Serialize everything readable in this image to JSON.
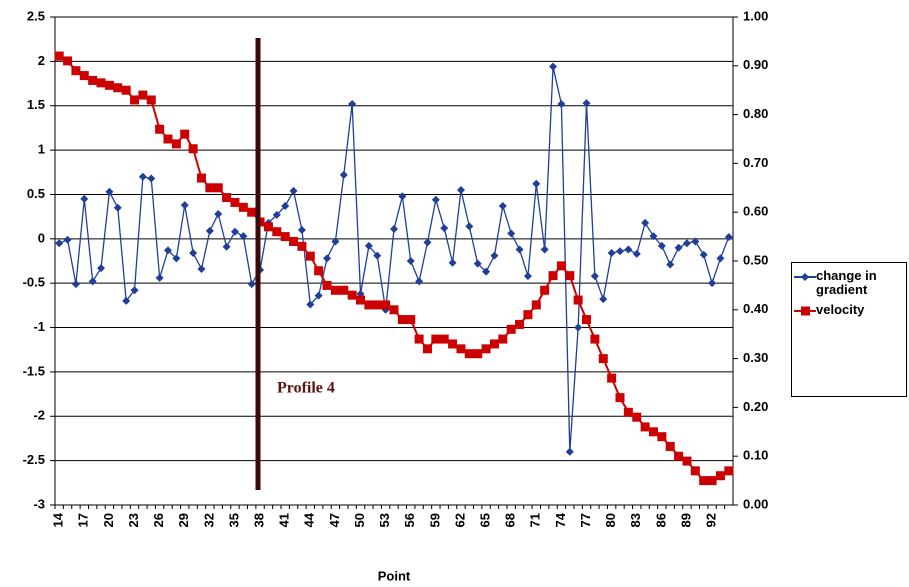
{
  "chart_data": {
    "type": "line",
    "x_label": "Point",
    "annotation": "Profile 4",
    "categories": [
      14,
      null,
      null,
      17,
      null,
      null,
      20,
      null,
      null,
      23,
      null,
      null,
      26,
      null,
      null,
      29,
      null,
      null,
      32,
      null,
      null,
      35,
      null,
      null,
      38,
      null,
      null,
      41,
      null,
      null,
      44,
      null,
      null,
      47,
      null,
      null,
      50,
      null,
      null,
      53,
      null,
      null,
      56,
      null,
      null,
      59,
      null,
      null,
      62,
      null,
      null,
      65,
      null,
      null,
      68,
      null,
      null,
      71,
      null,
      null,
      74,
      null,
      null,
      77,
      null,
      null,
      80,
      null,
      null,
      83,
      null,
      null,
      86,
      null,
      null,
      89,
      null,
      null,
      92,
      null,
      null
    ],
    "series": [
      {
        "name": "change in gradient",
        "color": "#1f3f99",
        "marker": "diamond",
        "axis": "y",
        "values": [
          -0.05,
          -0.01,
          -0.51,
          0.45,
          -0.48,
          -0.33,
          0.53,
          0.35,
          -0.7,
          -0.58,
          0.7,
          0.68,
          -0.44,
          -0.13,
          -0.22,
          0.38,
          -0.16,
          -0.34,
          0.09,
          0.28,
          -0.09,
          0.08,
          0.03,
          -0.51,
          -0.35,
          0.18,
          0.27,
          0.37,
          0.54,
          0.1,
          -0.74,
          -0.64,
          -0.22,
          -0.03,
          0.72,
          1.52,
          -0.62,
          -0.08,
          -0.19,
          -0.8,
          0.11,
          0.48,
          -0.25,
          -0.48,
          -0.04,
          0.44,
          0.12,
          -0.27,
          0.55,
          0.14,
          -0.28,
          -0.37,
          -0.19,
          0.37,
          0.06,
          -0.12,
          -0.42,
          0.62,
          -0.12,
          1.94,
          1.52,
          -2.4,
          -1.0,
          1.53,
          -0.42,
          -0.68,
          -0.16,
          -0.14,
          -0.12,
          -0.17,
          0.18,
          0.03,
          -0.08,
          -0.29,
          -0.1,
          -0.05,
          -0.03,
          -0.18,
          -0.5,
          -0.22,
          0.02
        ]
      },
      {
        "name": "velocity",
        "color": "#cc0000",
        "marker": "square",
        "axis": "y2",
        "values": [
          0.92,
          0.91,
          0.89,
          0.88,
          0.87,
          0.865,
          0.86,
          0.855,
          0.85,
          0.83,
          0.84,
          0.83,
          0.77,
          0.75,
          0.74,
          0.76,
          0.73,
          0.67,
          0.65,
          0.65,
          0.63,
          0.62,
          0.61,
          0.6,
          0.58,
          0.57,
          0.56,
          0.55,
          0.54,
          0.53,
          0.51,
          0.48,
          0.45,
          0.44,
          0.44,
          0.43,
          0.42,
          0.41,
          0.41,
          0.41,
          0.4,
          0.38,
          0.38,
          0.34,
          0.32,
          0.34,
          0.34,
          0.33,
          0.32,
          0.31,
          0.31,
          0.32,
          0.33,
          0.34,
          0.36,
          0.37,
          0.39,
          0.41,
          0.44,
          0.47,
          0.49,
          0.47,
          0.42,
          0.38,
          0.34,
          0.3,
          0.26,
          0.22,
          0.19,
          0.18,
          0.16,
          0.15,
          0.14,
          0.12,
          0.1,
          0.09,
          0.07,
          0.05,
          0.05,
          0.06,
          0.07
        ]
      }
    ],
    "ylim": [
      -3,
      2.5
    ],
    "yticks": [
      2.5,
      2,
      1.5,
      1,
      0.5,
      0,
      -0.5,
      -1,
      -1.5,
      -2,
      -2.5,
      -3
    ],
    "y2lim": [
      0,
      1
    ],
    "y2ticks": [
      {
        "value": 1,
        "label": "1.00"
      },
      {
        "value": 0.9,
        "label": "0.90"
      },
      {
        "value": 0.8,
        "label": "0.80"
      },
      {
        "value": 0.7,
        "label": "0.70"
      },
      {
        "value": 0.6,
        "label": "0.60"
      },
      {
        "value": 0.5,
        "label": "0.50"
      },
      {
        "value": 0.4,
        "label": "0.40"
      },
      {
        "value": 0.3,
        "label": "0.30"
      },
      {
        "value": 0.2,
        "label": "0.20"
      },
      {
        "value": 0.1,
        "label": "0.10"
      },
      {
        "value": 0,
        "label": "0.00"
      }
    ],
    "grid": true,
    "legend": "right"
  }
}
